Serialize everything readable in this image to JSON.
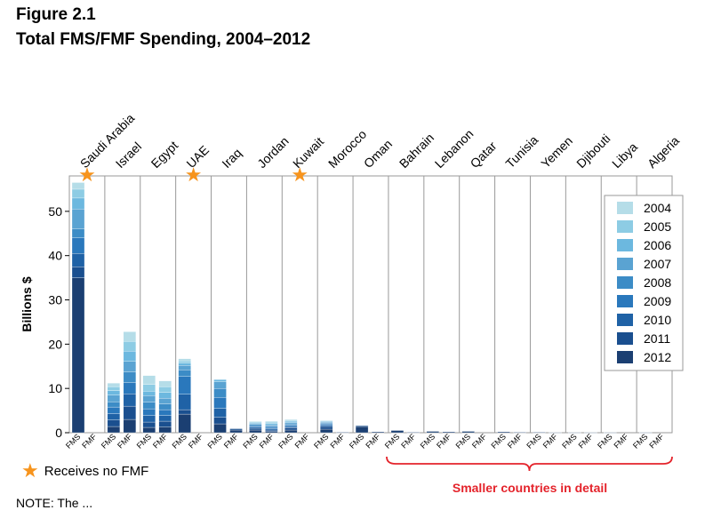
{
  "figure_label": "Figure 2.1",
  "title": "Total FMS/FMF Spending, 2004–2012",
  "star_note": "Receives no FMF",
  "bracket_label": "Smaller countries in detail",
  "note_text": "NOTE: The ...",
  "chart_data": {
    "type": "bar",
    "stacked": true,
    "ylabel": "Billions $",
    "ylim": [
      0,
      58
    ],
    "yticks": [
      0,
      10,
      20,
      30,
      40,
      50
    ],
    "grid": false,
    "legend_position": "top-right",
    "years": [
      "2004",
      "2005",
      "2006",
      "2007",
      "2008",
      "2009",
      "2010",
      "2011",
      "2012"
    ],
    "colors": [
      "#b5dde8",
      "#8dcce4",
      "#6cb8df",
      "#5aa3d2",
      "#3c8cc6",
      "#2a78bc",
      "#1f62a6",
      "#1a4f8f",
      "#1b3f72"
    ],
    "countries": [
      "Saudi Arabia",
      "Israel",
      "Egypt",
      "UAE",
      "Iraq",
      "Jordan",
      "Kuwait",
      "Morocco",
      "Oman",
      "Bahrain",
      "Lebanon",
      "Qatar",
      "Tunisia",
      "Yemen",
      "Djibouti",
      "Libya",
      "Algeria"
    ],
    "no_fmf": [
      "Saudi Arabia",
      "UAE",
      "Kuwait"
    ],
    "bar_labels": [
      "FMS",
      "FMF"
    ],
    "bars": [
      {
        "country": "Saudi Arabia",
        "kind": "FMS",
        "values": [
          1.5,
          2.0,
          2.5,
          4.5,
          2.0,
          3.5,
          3.0,
          2.5,
          35.0
        ]
      },
      {
        "country": "Saudi Arabia",
        "kind": "FMF",
        "values": [
          0,
          0,
          0,
          0,
          0,
          0,
          0,
          0,
          0
        ]
      },
      {
        "country": "Israel",
        "kind": "FMS",
        "values": [
          0.8,
          0.9,
          1.0,
          1.5,
          1.2,
          1.5,
          1.4,
          1.5,
          1.4
        ]
      },
      {
        "country": "Israel",
        "kind": "FMF",
        "values": [
          2.2,
          2.2,
          2.3,
          2.4,
          2.4,
          2.5,
          2.8,
          3.0,
          3.0
        ]
      },
      {
        "country": "Egypt",
        "kind": "FMS",
        "values": [
          2.0,
          1.5,
          1.0,
          1.5,
          1.5,
          1.5,
          1.5,
          1.2,
          1.2
        ]
      },
      {
        "country": "Egypt",
        "kind": "FMF",
        "values": [
          1.3,
          1.3,
          1.3,
          1.3,
          1.3,
          1.3,
          1.3,
          1.3,
          1.3
        ]
      },
      {
        "country": "UAE",
        "kind": "FMS",
        "values": [
          0.5,
          0.5,
          0.5,
          1.0,
          1.5,
          4.0,
          3.5,
          1.0,
          4.2
        ]
      },
      {
        "country": "UAE",
        "kind": "FMF",
        "values": [
          0,
          0,
          0,
          0,
          0,
          0,
          0,
          0,
          0
        ]
      },
      {
        "country": "Iraq",
        "kind": "FMS",
        "values": [
          0,
          0,
          0.5,
          1.5,
          2.0,
          2.5,
          2.0,
          1.5,
          2.0
        ]
      },
      {
        "country": "Iraq",
        "kind": "FMF",
        "values": [
          0,
          0,
          0,
          0,
          0,
          0,
          0,
          0.3,
          0.6
        ]
      },
      {
        "country": "Jordan",
        "kind": "FMS",
        "values": [
          0.1,
          0.2,
          0.2,
          0.2,
          0.3,
          0.3,
          0.3,
          0.4,
          0.6
        ]
      },
      {
        "country": "Jordan",
        "kind": "FMF",
        "values": [
          0.2,
          0.3,
          0.3,
          0.3,
          0.3,
          0.3,
          0.3,
          0.3,
          0.3
        ]
      },
      {
        "country": "Kuwait",
        "kind": "FMS",
        "values": [
          0.2,
          0.2,
          0.3,
          0.3,
          0.3,
          0.3,
          0.3,
          0.5,
          0.6
        ]
      },
      {
        "country": "Kuwait",
        "kind": "FMF",
        "values": [
          0,
          0,
          0,
          0,
          0,
          0,
          0,
          0,
          0
        ]
      },
      {
        "country": "Morocco",
        "kind": "FMS",
        "values": [
          0.1,
          0.1,
          0.2,
          0.2,
          0.2,
          0.3,
          0.3,
          0.6,
          0.8
        ]
      },
      {
        "country": "Morocco",
        "kind": "FMF",
        "values": [
          0,
          0,
          0,
          0,
          0,
          0,
          0,
          0,
          0.1
        ]
      },
      {
        "country": "Oman",
        "kind": "FMS",
        "values": [
          0,
          0,
          0,
          0,
          0,
          0,
          0,
          0.2,
          1.4
        ]
      },
      {
        "country": "Oman",
        "kind": "FMF",
        "values": [
          0,
          0,
          0,
          0,
          0,
          0,
          0,
          0,
          0.2
        ]
      },
      {
        "country": "Bahrain",
        "kind": "FMS",
        "values": [
          0,
          0,
          0,
          0,
          0,
          0,
          0,
          0,
          0.5
        ]
      },
      {
        "country": "Bahrain",
        "kind": "FMF",
        "values": [
          0,
          0,
          0,
          0,
          0,
          0,
          0,
          0,
          0.1
        ]
      },
      {
        "country": "Lebanon",
        "kind": "FMS",
        "values": [
          0,
          0,
          0,
          0,
          0,
          0,
          0,
          0,
          0.3
        ]
      },
      {
        "country": "Lebanon",
        "kind": "FMF",
        "values": [
          0,
          0,
          0,
          0,
          0,
          0,
          0,
          0,
          0.2
        ]
      },
      {
        "country": "Qatar",
        "kind": "FMS",
        "values": [
          0,
          0,
          0,
          0,
          0,
          0,
          0,
          0,
          0.3
        ]
      },
      {
        "country": "Qatar",
        "kind": "FMF",
        "values": [
          0,
          0,
          0,
          0,
          0,
          0,
          0,
          0,
          0
        ]
      },
      {
        "country": "Tunisia",
        "kind": "FMS",
        "values": [
          0,
          0,
          0,
          0,
          0,
          0,
          0,
          0,
          0.2
        ]
      },
      {
        "country": "Tunisia",
        "kind": "FMF",
        "values": [
          0,
          0,
          0,
          0,
          0,
          0,
          0,
          0,
          0.1
        ]
      },
      {
        "country": "Yemen",
        "kind": "FMS",
        "values": [
          0,
          0,
          0,
          0,
          0,
          0,
          0,
          0,
          0.1
        ]
      },
      {
        "country": "Yemen",
        "kind": "FMF",
        "values": [
          0,
          0,
          0,
          0,
          0,
          0,
          0,
          0,
          0.05
        ]
      },
      {
        "country": "Djibouti",
        "kind": "FMS",
        "values": [
          0,
          0,
          0,
          0,
          0,
          0,
          0,
          0,
          0.05
        ]
      },
      {
        "country": "Djibouti",
        "kind": "FMF",
        "values": [
          0,
          0,
          0,
          0,
          0,
          0,
          0,
          0,
          0.05
        ]
      },
      {
        "country": "Libya",
        "kind": "FMS",
        "values": [
          0,
          0,
          0,
          0,
          0,
          0,
          0,
          0,
          0.05
        ]
      },
      {
        "country": "Libya",
        "kind": "FMF",
        "values": [
          0,
          0,
          0,
          0,
          0,
          0,
          0,
          0,
          0
        ]
      },
      {
        "country": "Algeria",
        "kind": "FMS",
        "values": [
          0,
          0,
          0,
          0,
          0,
          0,
          0,
          0,
          0.05
        ]
      },
      {
        "country": "Algeria",
        "kind": "FMF",
        "values": [
          0,
          0,
          0,
          0,
          0,
          0,
          0,
          0,
          0
        ]
      }
    ]
  }
}
